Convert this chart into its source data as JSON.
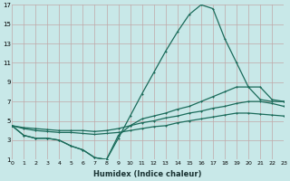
{
  "bg_color": "#c8e8e8",
  "grid_color": "#c0a8a8",
  "line_color": "#1a6b5a",
  "line1_x": [
    0,
    1,
    2,
    3,
    4,
    5,
    6,
    7,
    8,
    9,
    10,
    11,
    12,
    13,
    14,
    15,
    16,
    17,
    18,
    19,
    20,
    21,
    22,
    23
  ],
  "line1_y": [
    4.5,
    3.5,
    3.2,
    3.2,
    3.0,
    2.4,
    2.0,
    1.2,
    1.0,
    3.2,
    5.5,
    7.8,
    10.0,
    12.2,
    14.2,
    16.0,
    17.0,
    16.6,
    13.5,
    11.0,
    8.5,
    7.2,
    7.0,
    7.0
  ],
  "line2_x": [
    0,
    1,
    2,
    3,
    4,
    5,
    6,
    7,
    8,
    9,
    10,
    11,
    12,
    13,
    14,
    15,
    16,
    17,
    18,
    19,
    20,
    21,
    22,
    23
  ],
  "line2_y": [
    4.5,
    3.5,
    3.2,
    3.2,
    3.0,
    2.4,
    2.0,
    1.2,
    1.0,
    3.5,
    4.5,
    5.2,
    5.5,
    5.8,
    6.2,
    6.5,
    7.0,
    7.5,
    8.0,
    8.5,
    8.5,
    8.5,
    7.2,
    7.0
  ],
  "line3_x": [
    0,
    1,
    2,
    3,
    4,
    5,
    6,
    7,
    8,
    9,
    10,
    11,
    12,
    13,
    14,
    15,
    16,
    17,
    18,
    19,
    20,
    21,
    22,
    23
  ],
  "line3_y": [
    4.5,
    4.3,
    4.2,
    4.1,
    4.0,
    4.0,
    4.0,
    3.9,
    4.0,
    4.2,
    4.5,
    4.8,
    5.0,
    5.3,
    5.5,
    5.8,
    6.0,
    6.3,
    6.5,
    6.8,
    7.0,
    7.0,
    6.8,
    6.5
  ],
  "line4_x": [
    0,
    1,
    2,
    3,
    4,
    5,
    6,
    7,
    8,
    9,
    10,
    11,
    12,
    13,
    14,
    15,
    16,
    17,
    18,
    19,
    20,
    21,
    22,
    23
  ],
  "line4_y": [
    4.5,
    4.2,
    4.0,
    3.9,
    3.8,
    3.8,
    3.7,
    3.6,
    3.7,
    3.8,
    4.0,
    4.2,
    4.4,
    4.5,
    4.8,
    5.0,
    5.2,
    5.4,
    5.6,
    5.8,
    5.8,
    5.7,
    5.6,
    5.5
  ],
  "xlabel": "Humidex (Indice chaleur)",
  "xlim": [
    0,
    23
  ],
  "ylim": [
    1,
    17
  ],
  "xticks": [
    0,
    1,
    2,
    3,
    4,
    5,
    6,
    7,
    8,
    9,
    10,
    11,
    12,
    13,
    14,
    15,
    16,
    17,
    18,
    19,
    20,
    21,
    22,
    23
  ],
  "yticks": [
    1,
    3,
    5,
    7,
    9,
    11,
    13,
    15,
    17
  ],
  "linewidth": 0.9,
  "markersize": 1.8
}
